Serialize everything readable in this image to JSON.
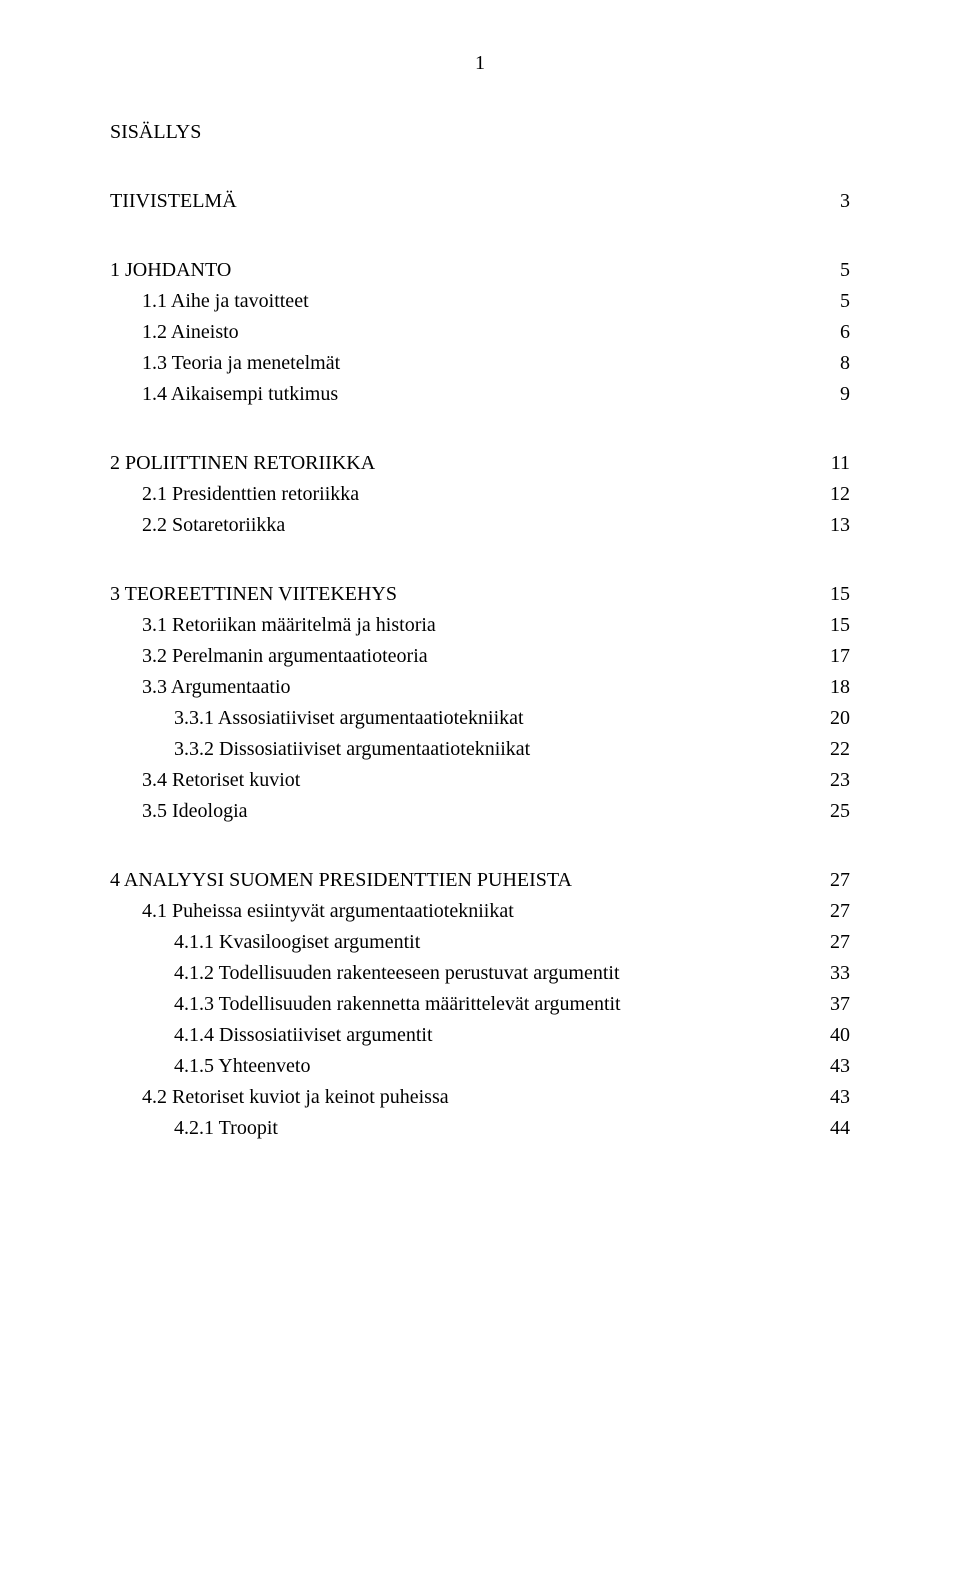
{
  "page_number": "1",
  "heading": "SISÄLLYS",
  "sections": [
    {
      "title": {
        "label": "TIIVISTELMÄ",
        "page": "3"
      },
      "items": []
    },
    {
      "title": {
        "label": "1 JOHDANTO",
        "page": "5"
      },
      "items": [
        {
          "label": "1.1 Aihe ja tavoitteet",
          "page": "5",
          "indent": 1
        },
        {
          "label": "1.2 Aineisto",
          "page": "6",
          "indent": 1
        },
        {
          "label": "1.3 Teoria ja menetelmät",
          "page": "8",
          "indent": 1
        },
        {
          "label": "1.4 Aikaisempi tutkimus",
          "page": "9",
          "indent": 1
        }
      ]
    },
    {
      "title": {
        "label": "2 POLIITTINEN RETORIIKKA",
        "page": "11"
      },
      "items": [
        {
          "label": "2.1 Presidenttien retoriikka",
          "page": "12",
          "indent": 1
        },
        {
          "label": "2.2 Sotaretoriikka",
          "page": "13",
          "indent": 1
        }
      ]
    },
    {
      "title": {
        "label": "3 TEOREETTINEN VIITEKEHYS",
        "page": "15"
      },
      "items": [
        {
          "label": "3.1 Retoriikan määritelmä ja historia",
          "page": "15",
          "indent": 1
        },
        {
          "label": "3.2 Perelmanin argumentaatioteoria",
          "page": "17",
          "indent": 1
        },
        {
          "label": "3.3 Argumentaatio",
          "page": "18",
          "indent": 1
        },
        {
          "label": "3.3.1 Assosiatiiviset argumentaatiotekniikat",
          "page": "20",
          "indent": 2
        },
        {
          "label": "3.3.2 Dissosiatiiviset argumentaatiotekniikat",
          "page": "22",
          "indent": 2
        },
        {
          "label": "3.4 Retoriset kuviot",
          "page": "23",
          "indent": 1
        },
        {
          "label": "3.5 Ideologia",
          "page": "25",
          "indent": 1
        }
      ]
    },
    {
      "title": {
        "label": "4 ANALYYSI SUOMEN PRESIDENTTIEN PUHEISTA",
        "page": "27"
      },
      "items": [
        {
          "label": "4.1 Puheissa esiintyvät argumentaatiotekniikat",
          "page": "27",
          "indent": 1
        },
        {
          "label": "4.1.1 Kvasiloogiset argumentit",
          "page": "27",
          "indent": 2
        },
        {
          "label": "4.1.2 Todellisuuden rakenteeseen perustuvat argumentit",
          "page": "33",
          "indent": 2
        },
        {
          "label": "4.1.3 Todellisuuden rakennetta määrittelevät argumentit",
          "page": "37",
          "indent": 2
        },
        {
          "label": "4.1.4 Dissosiatiiviset argumentit",
          "page": "40",
          "indent": 2
        },
        {
          "label": "4.1.5 Yhteenveto",
          "page": "43",
          "indent": 2
        },
        {
          "label": "4.2 Retoriset kuviot ja keinot puheissa",
          "page": "43",
          "indent": 1
        },
        {
          "label": "4.2.1 Troopit",
          "page": "44",
          "indent": 2
        }
      ]
    }
  ]
}
